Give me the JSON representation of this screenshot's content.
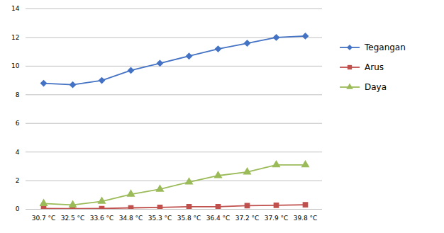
{
  "chart_data": {
    "type": "line",
    "categories": [
      "30.7 °C",
      "32.5 °C",
      "33.6 °C",
      "34.8 °C",
      "35.3 °C",
      "35.8 °C",
      "36.4 °C",
      "37.2 °C",
      "37.9 °C",
      "39.8 °C"
    ],
    "series": [
      {
        "name": "Tegangan",
        "color": "#4472C4",
        "marker": "diamond",
        "values": [
          8.8,
          8.7,
          9.0,
          9.7,
          10.2,
          10.7,
          11.2,
          11.6,
          12.0,
          12.1
        ]
      },
      {
        "name": "Arus",
        "color": "#C0504D",
        "marker": "square",
        "values": [
          0.05,
          0.04,
          0.05,
          0.1,
          0.13,
          0.18,
          0.18,
          0.25,
          0.28,
          0.32
        ]
      },
      {
        "name": "Daya",
        "color": "#9BBB59",
        "marker": "triangle",
        "values": [
          0.4,
          0.3,
          0.55,
          1.05,
          1.4,
          1.9,
          2.35,
          2.6,
          3.1,
          3.1
        ]
      }
    ],
    "ylim": [
      0,
      14
    ],
    "yticks": [
      0,
      2,
      4,
      6,
      8,
      10,
      12,
      14
    ],
    "grid": true,
    "legend": "right"
  }
}
